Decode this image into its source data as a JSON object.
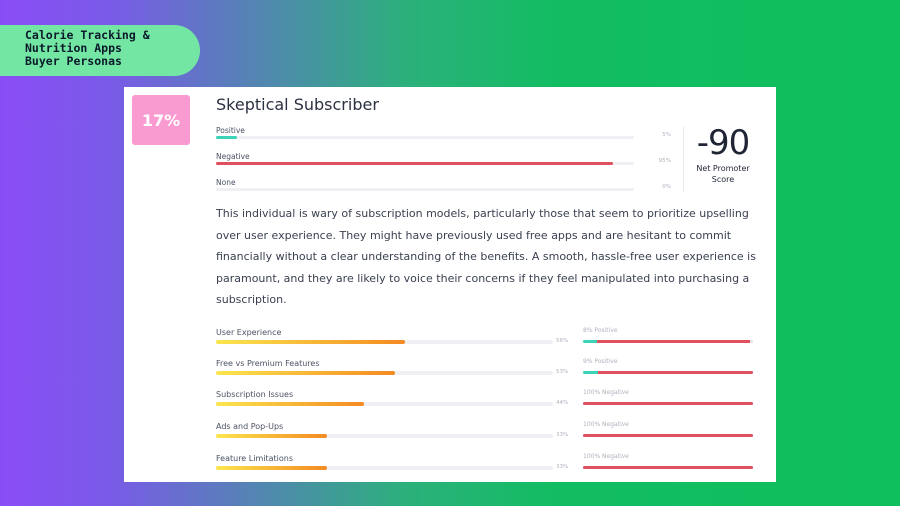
{
  "tag": {
    "lines": [
      "Calorie Tracking &",
      "Nutrition Apps",
      "Buyer Personas"
    ]
  },
  "persona": {
    "percent": "17%",
    "title": "Skeptical Subscriber",
    "sentiment": [
      {
        "label": "Positive",
        "value_text": "5%",
        "value": 5,
        "color": "#3bd3b8"
      },
      {
        "label": "Negative",
        "value_text": "95%",
        "value": 95,
        "color": "#e0505e"
      },
      {
        "label": "None",
        "value_text": "0%",
        "value": 0,
        "color": "#cccccc"
      }
    ],
    "nps": {
      "value": "-90",
      "label_line1": "Net Promoter",
      "label_line2": "Score"
    },
    "description": "This individual is wary of subscription models, particularly those that seem to prioritize upselling over user experience. They might have previously used free apps and are hesitant to commit financially without a clear understanding of the benefits. A smooth, hassle-free user experience is paramount, and they are likely to voice their concerns if they feel manipulated into purchasing a subscription."
  },
  "attributes": [
    {
      "label": "User Experience",
      "value_text": "56%",
      "value": 56,
      "sentiment_text": "8% Positive",
      "positive": 8,
      "negative": 90
    },
    {
      "label": "Free vs Premium Features",
      "value_text": "53%",
      "value": 53,
      "sentiment_text": "9% Positive",
      "positive": 9,
      "negative": 91
    },
    {
      "label": "Subscription Issues",
      "value_text": "44%",
      "value": 44,
      "sentiment_text": "100% Negative",
      "positive": 0,
      "negative": 100
    },
    {
      "label": "Ads and Pop-Ups",
      "value_text": "33%",
      "value": 33,
      "sentiment_text": "100% Negative",
      "positive": 0,
      "negative": 100
    },
    {
      "label": "Feature Limitations",
      "value_text": "33%",
      "value": 33,
      "sentiment_text": "100% Negative",
      "positive": 0,
      "negative": 100
    }
  ],
  "colors": {
    "positive": "#3bd3b8",
    "negative": "#e0505e",
    "badge": "#f99ad0",
    "tag": "#74e6a3"
  }
}
